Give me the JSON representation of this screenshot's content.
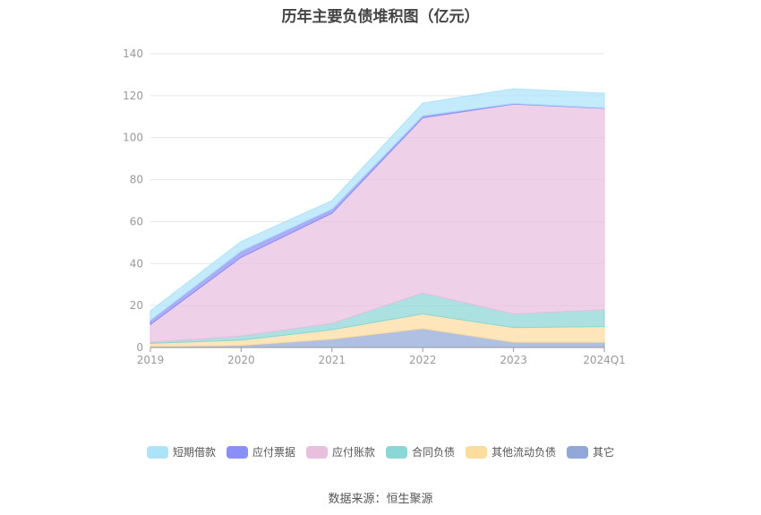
{
  "source_label": "数据来源：恒生聚源",
  "chart_data": {
    "type": "area",
    "stacked": true,
    "title": "历年主要负债堆积图（亿元）",
    "categories": [
      "2019",
      "2020",
      "2021",
      "2022",
      "2023",
      "2024Q1"
    ],
    "ylim": [
      0,
      140
    ],
    "yticks": [
      0,
      20,
      40,
      60,
      80,
      100,
      120,
      140
    ],
    "grid": true,
    "legend_position": "bottom",
    "series": [
      {
        "name": "其它",
        "color": "#91a7d8",
        "values": [
          0.5,
          1.0,
          4.0,
          9.0,
          2.5,
          2.5
        ]
      },
      {
        "name": "其他流动负债",
        "color": "#fddd9f",
        "values": [
          1.5,
          2.5,
          4.5,
          7.0,
          7.0,
          7.5
        ]
      },
      {
        "name": "合同负债",
        "color": "#8ad7d5",
        "values": [
          0.5,
          2.0,
          3.0,
          10.0,
          6.5,
          8.0
        ]
      },
      {
        "name": "应付账款",
        "color": "#e8bfdf",
        "values": [
          8.5,
          37.5,
          52.5,
          83.5,
          100.0,
          96.0
        ]
      },
      {
        "name": "应付票据",
        "color": "#8a8ef7",
        "values": [
          2.0,
          3.0,
          2.0,
          1.0,
          0.3,
          0.2
        ]
      },
      {
        "name": "短期借款",
        "color": "#ade3f9",
        "values": [
          4.5,
          4.5,
          4.0,
          6.0,
          7.0,
          7.0
        ]
      }
    ]
  }
}
